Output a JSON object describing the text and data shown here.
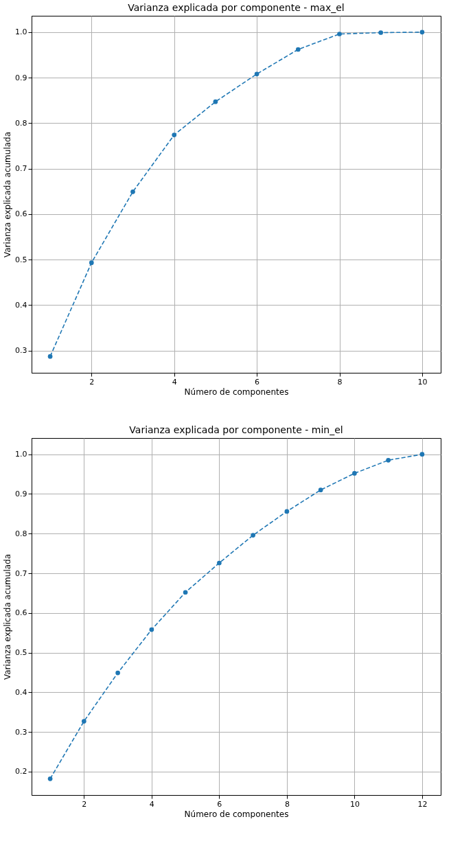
{
  "chart_data": [
    {
      "type": "line",
      "title": "Varianza explicada por componente - max_el",
      "xlabel": "Número de componentes",
      "ylabel": "Varianza explicada acumulada",
      "x": [
        1,
        2,
        3,
        4,
        5,
        6,
        7,
        8,
        9,
        10
      ],
      "series": [
        {
          "color": "#1f77b4",
          "values": [
            0.287,
            0.493,
            0.649,
            0.774,
            0.847,
            0.908,
            0.962,
            0.996,
            0.999,
            1.0
          ]
        }
      ],
      "xlim": [
        0.55,
        10.45
      ],
      "xticks": [
        2,
        4,
        6,
        8,
        10
      ],
      "ylim": [
        0.251,
        1.036
      ],
      "yticks": [
        0.3,
        0.4,
        0.5,
        0.6,
        0.7,
        0.8,
        0.9,
        {
          "value": 1.0,
          "label": "1.0"
        }
      ],
      "grid": true,
      "marker": "circle",
      "line_style": "dashed"
    },
    {
      "type": "line",
      "title": "Varianza explicada por componente - min_el",
      "xlabel": "Número de componentes",
      "ylabel": "Varianza explicada acumulada",
      "x": [
        1,
        2,
        3,
        4,
        5,
        6,
        7,
        8,
        9,
        10,
        11,
        12
      ],
      "series": [
        {
          "color": "#1f77b4",
          "values": [
            0.182,
            0.327,
            0.449,
            0.558,
            0.652,
            0.726,
            0.796,
            0.856,
            0.91,
            0.952,
            0.985,
            1.0
          ]
        }
      ],
      "xlim": [
        0.45,
        12.55
      ],
      "xticks": [
        2,
        4,
        6,
        8,
        10,
        12
      ],
      "ylim": [
        0.141,
        1.041
      ],
      "yticks": [
        0.2,
        0.3,
        0.4,
        0.5,
        0.6,
        0.7,
        0.8,
        0.9,
        {
          "value": 1.0,
          "label": "1.0"
        }
      ],
      "grid": true,
      "marker": "circle",
      "line_style": "dashed"
    }
  ]
}
